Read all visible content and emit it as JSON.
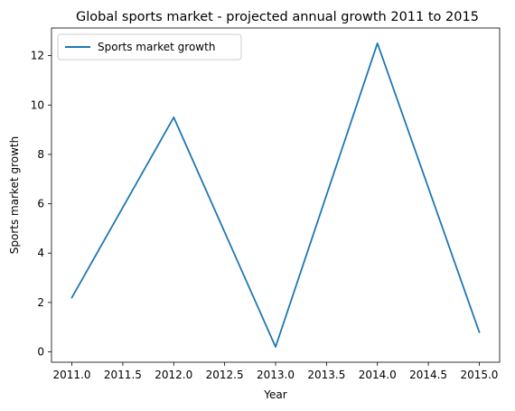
{
  "chart_data": {
    "type": "line",
    "title": "Global sports market - projected annual growth 2011 to 2015",
    "xlabel": "Year",
    "ylabel": "Sports market growth",
    "x": [
      2011,
      2012,
      2013,
      2014,
      2015
    ],
    "series": [
      {
        "name": "Sports market growth",
        "values": [
          2.2,
          9.5,
          0.2,
          12.5,
          0.8
        ],
        "color": "#1f77b4"
      }
    ],
    "xlim": [
      2010.8,
      2015.2
    ],
    "ylim": [
      -0.42,
      13.12
    ],
    "xticks": [
      2011.0,
      2011.5,
      2012.0,
      2012.5,
      2013.0,
      2013.5,
      2014.0,
      2014.5,
      2015.0
    ],
    "xtick_labels": [
      "2011.0",
      "2011.5",
      "2012.0",
      "2012.5",
      "2013.0",
      "2013.5",
      "2014.0",
      "2014.5",
      "2015.0"
    ],
    "yticks": [
      0,
      2,
      4,
      6,
      8,
      10,
      12
    ],
    "ytick_labels": [
      "0",
      "2",
      "4",
      "6",
      "8",
      "10",
      "12"
    ],
    "grid": false,
    "legend_position": "top-left"
  }
}
